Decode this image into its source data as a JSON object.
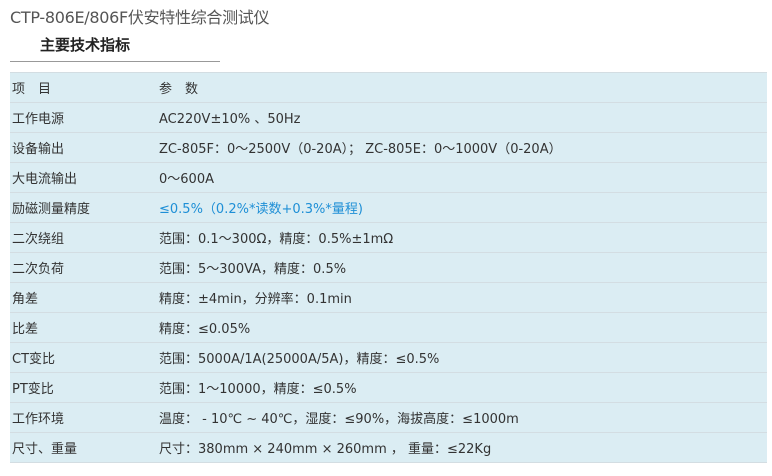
{
  "title": "CTP-806E/806F伏安特性综合测试仪",
  "subtitle": "主要技术指标",
  "table": {
    "header": [
      "项　目",
      "参　数"
    ],
    "rows": [
      {
        "item": "工作电源",
        "value": "AC220V±10% 、50Hz"
      },
      {
        "item": "设备输出",
        "value": "ZC-805F：0～2500V（0-20A）； ZC-805E：0～1000V（0-20A）"
      },
      {
        "item": "大电流输出",
        "value": "0～600A"
      },
      {
        "item": "励磁测量精度",
        "value": "≤0.5%（0.2%*读数+0.3%*量程)",
        "highlight": true
      },
      {
        "item": "二次绕组",
        "value": "范围：0.1～300Ω，精度：0.5%±1mΩ"
      },
      {
        "item": "二次负荷",
        "value": "范围：5～300VA，精度：0.5%"
      },
      {
        "item": "角差",
        "value": "精度：±4min，分辨率：0.1min"
      },
      {
        "item": "比差",
        "value": "精度：≤0.05%"
      },
      {
        "item": "CT变比",
        "value": "范围：5000A/1A(25000A/5A)，精度：≤0.5%"
      },
      {
        "item": "PT变比",
        "value": "范围：1～10000，精度：≤0.5%"
      },
      {
        "item": "工作环境",
        "value": "温度： - 10℃ ~ 40℃，湿度：≤90%，海拔高度：≤1000m"
      },
      {
        "item": "尺寸、重量",
        "value": "尺寸：380mm × 240mm × 260mm ， 重量：≤22Kg"
      }
    ]
  },
  "colors": {
    "table_bg": "#dbedf3",
    "highlight_text": "#1e8fd6"
  }
}
